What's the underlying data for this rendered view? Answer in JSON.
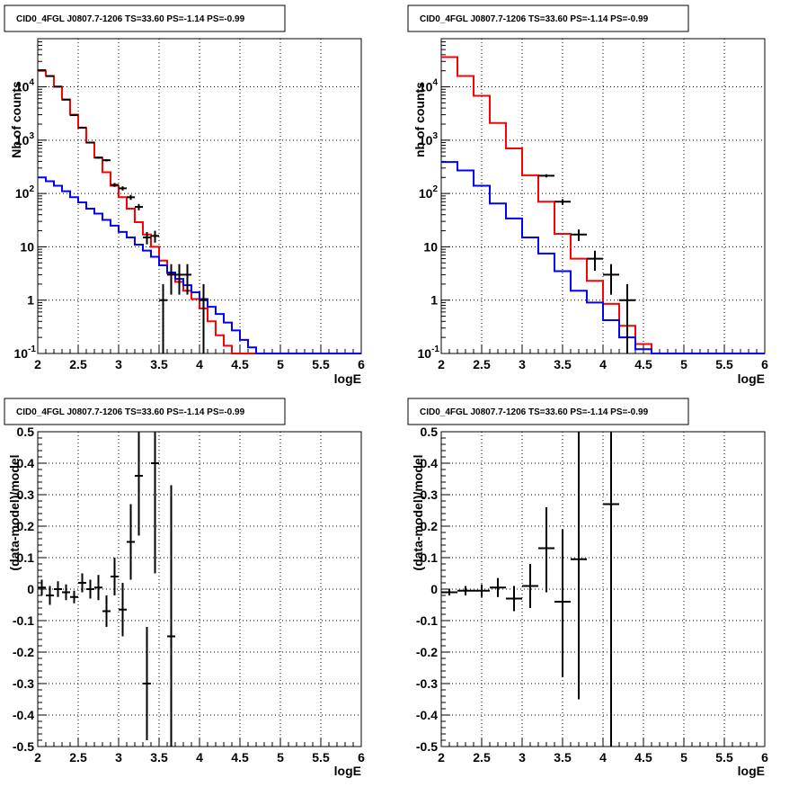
{
  "colors": {
    "model_total": "#ff0000",
    "model_background": "#0000ff",
    "data": "#000000",
    "grid": "#000000"
  },
  "chart_data": [
    {
      "id": "p1",
      "type": "line",
      "title": "CID0_4FGL J0807.7-1206 TS=33.60 PS=-1.14 PS=-0.99",
      "xlabel": "logE",
      "ylabel": "Nb of counts",
      "xlim": [
        2,
        6
      ],
      "ylim": [
        0.1,
        80000
      ],
      "yscale": "log",
      "grid": true,
      "xticks": [
        "2",
        "2.5",
        "3",
        "3.5",
        "4",
        "4.5",
        "5",
        "5.5",
        "6"
      ],
      "yticks": [
        {
          "value": 0.1,
          "label": "10",
          "sup": "-1"
        },
        {
          "value": 1,
          "label": "1",
          "sup": ""
        },
        {
          "value": 10,
          "label": "10",
          "sup": ""
        },
        {
          "value": 100,
          "label": "10",
          "sup": "2"
        },
        {
          "value": 1000,
          "label": "10",
          "sup": "3"
        },
        {
          "value": 10000,
          "label": "10",
          "sup": "4"
        }
      ],
      "bin_edges": [
        2,
        2.1,
        2.2,
        2.3,
        2.4,
        2.5,
        2.6,
        2.7,
        2.8,
        2.9,
        3,
        3.1,
        3.2,
        3.3,
        3.4,
        3.5,
        3.6,
        3.7,
        3.8,
        3.9,
        4,
        4.1,
        4.2,
        4.3,
        4.4,
        4.5,
        4.6,
        4.7,
        4.8,
        4.9,
        5,
        5.1,
        5.2,
        5.3,
        5.4,
        5.5,
        5.6,
        5.7,
        5.8,
        5.9,
        6
      ],
      "series": [
        {
          "role": "model_total",
          "values": [
            20000,
            16000,
            10000,
            5800,
            3000,
            1700,
            900,
            470,
            250,
            140,
            85,
            52,
            29,
            17,
            10,
            5.5,
            3.2,
            2.2,
            1.5,
            1.05,
            0.7,
            0.4,
            0.22,
            0.14,
            0.1,
            0.1,
            0.1,
            0.1,
            0.1,
            0.1,
            0.1,
            0.1,
            0.1,
            0.1,
            0.1,
            0.1,
            0.1,
            0.1,
            0.1,
            0.1
          ]
        },
        {
          "role": "model_background",
          "values": [
            200,
            170,
            140,
            110,
            85,
            68,
            52,
            42,
            32,
            25,
            19,
            15,
            11,
            8.5,
            6.5,
            4.5,
            3.3,
            2.5,
            1.9,
            1.4,
            1.05,
            0.75,
            0.55,
            0.38,
            0.27,
            0.18,
            0.13,
            0.1,
            0.1,
            0.1,
            0.1,
            0.1,
            0.1,
            0.1,
            0.1,
            0.1,
            0.1,
            0.1,
            0.1,
            0.1
          ]
        },
        {
          "role": "data",
          "points": [
            {
              "x": 2.05,
              "y": 20500,
              "xerr": 0.05
            },
            {
              "x": 2.15,
              "y": 15900,
              "xerr": 0.05
            },
            {
              "x": 2.25,
              "y": 10100,
              "xerr": 0.05
            },
            {
              "x": 2.35,
              "y": 5750,
              "xerr": 0.05
            },
            {
              "x": 2.45,
              "y": 2950,
              "xerr": 0.05
            },
            {
              "x": 2.55,
              "y": 1720,
              "xerr": 0.05
            },
            {
              "x": 2.65,
              "y": 900,
              "xerr": 0.05
            },
            {
              "x": 2.75,
              "y": 470,
              "xerr": 0.05
            },
            {
              "x": 2.85,
              "y": 420,
              "xerr": 0.05
            },
            {
              "x": 2.95,
              "y": 145,
              "xerr": 0.05
            },
            {
              "x": 3.05,
              "y": 125,
              "xerr": 0.05
            },
            {
              "x": 3.15,
              "y": 85,
              "xerr": 0.05
            },
            {
              "x": 3.25,
              "y": 56,
              "xerr": 0.05
            },
            {
              "x": 3.35,
              "y": 15,
              "xerr": 0.05
            },
            {
              "x": 3.45,
              "y": 16,
              "xerr": 0.05
            },
            {
              "x": 3.55,
              "y": 1,
              "xerr": 0.05
            },
            {
              "x": 3.65,
              "y": 3,
              "xerr": 0.05
            },
            {
              "x": 3.75,
              "y": 3,
              "xerr": 0.05
            },
            {
              "x": 3.85,
              "y": 3,
              "xerr": 0.05
            },
            {
              "x": 4.05,
              "y": 1,
              "xerr": 0.05
            }
          ]
        }
      ]
    },
    {
      "id": "p2",
      "type": "line",
      "title": "CID0_4FGL J0807.7-1206 TS=33.60 PS=-1.14 PS=-0.99",
      "xlabel": "logE",
      "ylabel": "nb of counts",
      "xlim": [
        2,
        6
      ],
      "ylim": [
        0.1,
        80000
      ],
      "yscale": "log",
      "grid": true,
      "xticks": [
        "2",
        "2.5",
        "3",
        "3.5",
        "4",
        "4.5",
        "5",
        "5.5",
        "6"
      ],
      "yticks": [
        {
          "value": 0.1,
          "label": "10",
          "sup": "-1"
        },
        {
          "value": 1,
          "label": "1",
          "sup": ""
        },
        {
          "value": 10,
          "label": "10",
          "sup": ""
        },
        {
          "value": 100,
          "label": "10",
          "sup": "2"
        },
        {
          "value": 1000,
          "label": "10",
          "sup": "3"
        },
        {
          "value": 10000,
          "label": "10",
          "sup": "4"
        }
      ],
      "bin_edges": [
        2,
        2.2,
        2.4,
        2.6,
        2.8,
        3,
        3.2,
        3.4,
        3.6,
        3.8,
        4,
        4.2,
        4.4,
        4.6,
        4.8,
        5,
        5.2,
        5.4,
        5.6,
        5.8,
        6
      ],
      "series": [
        {
          "role": "model_total",
          "values": [
            36000,
            16000,
            6800,
            2100,
            700,
            220,
            70,
            17.5,
            6,
            2.3,
            0.85,
            0.33,
            0.15,
            0.1,
            0.1,
            0.1,
            0.1,
            0.1,
            0.1,
            0.1
          ]
        },
        {
          "role": "model_background",
          "values": [
            390,
            270,
            140,
            65,
            34,
            15,
            7.5,
            3.5,
            1.5,
            0.9,
            0.42,
            0.2,
            0.12,
            0.1,
            0.1,
            0.1,
            0.1,
            0.1,
            0.1,
            0.1
          ]
        },
        {
          "role": "data",
          "points": [
            {
              "x": 3.3,
              "y": 215,
              "xerr": 0.1
            },
            {
              "x": 3.5,
              "y": 70,
              "xerr": 0.1
            },
            {
              "x": 3.7,
              "y": 17,
              "xerr": 0.1
            },
            {
              "x": 3.9,
              "y": 6,
              "xerr": 0.1
            },
            {
              "x": 4.1,
              "y": 3,
              "xerr": 0.1
            },
            {
              "x": 4.3,
              "y": 1,
              "xerr": 0.1
            }
          ]
        }
      ]
    },
    {
      "id": "p3",
      "type": "scatter",
      "title": "CID0_4FGL J0807.7-1206 TS=33.60 PS=-1.14 PS=-0.99",
      "xlabel": "logE",
      "ylabel": "(data-model)/model",
      "xlim": [
        2,
        6
      ],
      "ylim": [
        -0.5,
        0.5
      ],
      "yscale": "linear",
      "grid": true,
      "xticks": [
        "2",
        "2.5",
        "3",
        "3.5",
        "4",
        "4.5",
        "5",
        "5.5",
        "6"
      ],
      "yticks": [
        {
          "value": -0.5,
          "label": "-0.5",
          "sup": ""
        },
        {
          "value": -0.4,
          "label": "-0.4",
          "sup": ""
        },
        {
          "value": -0.3,
          "label": "-0.3",
          "sup": ""
        },
        {
          "value": -0.2,
          "label": "-0.2",
          "sup": ""
        },
        {
          "value": -0.1,
          "label": "-0.1",
          "sup": ""
        },
        {
          "value": 0,
          "label": "0",
          "sup": ""
        },
        {
          "value": 0.1,
          "label": "0.1",
          "sup": ""
        },
        {
          "value": 0.2,
          "label": "0.2",
          "sup": ""
        },
        {
          "value": 0.3,
          "label": "0.3",
          "sup": ""
        },
        {
          "value": 0.4,
          "label": "0.4",
          "sup": ""
        },
        {
          "value": 0.5,
          "label": "0.5",
          "sup": ""
        }
      ],
      "series": [
        {
          "role": "data",
          "points": [
            {
              "x": 2.05,
              "y": 0.005,
              "xerr": 0.05,
              "ylo": -0.02,
              "yhi": 0.03
            },
            {
              "x": 2.15,
              "y": -0.02,
              "xerr": 0.05,
              "ylo": -0.05,
              "yhi": 0.01
            },
            {
              "x": 2.25,
              "y": 0.0,
              "xerr": 0.05,
              "ylo": -0.025,
              "yhi": 0.025
            },
            {
              "x": 2.35,
              "y": -0.01,
              "xerr": 0.05,
              "ylo": -0.035,
              "yhi": 0.015
            },
            {
              "x": 2.45,
              "y": -0.025,
              "xerr": 0.05,
              "ylo": -0.045,
              "yhi": -0.005
            },
            {
              "x": 2.55,
              "y": 0.02,
              "xerr": 0.05,
              "ylo": -0.01,
              "yhi": 0.05
            },
            {
              "x": 2.65,
              "y": 0.0,
              "xerr": 0.05,
              "ylo": -0.03,
              "yhi": 0.03
            },
            {
              "x": 2.75,
              "y": 0.005,
              "xerr": 0.05,
              "ylo": -0.035,
              "yhi": 0.045
            },
            {
              "x": 2.85,
              "y": -0.07,
              "xerr": 0.05,
              "ylo": -0.12,
              "yhi": -0.02
            },
            {
              "x": 2.95,
              "y": 0.04,
              "xerr": 0.05,
              "ylo": -0.02,
              "yhi": 0.1
            },
            {
              "x": 3.05,
              "y": -0.065,
              "xerr": 0.05,
              "ylo": -0.15,
              "yhi": 0.02
            },
            {
              "x": 3.15,
              "y": 0.15,
              "xerr": 0.05,
              "ylo": 0.03,
              "yhi": 0.27
            },
            {
              "x": 3.25,
              "y": 0.36,
              "xerr": 0.05,
              "ylo": 0.17,
              "yhi": 0.55
            },
            {
              "x": 3.35,
              "y": -0.3,
              "xerr": 0.05,
              "ylo": -0.48,
              "yhi": -0.12
            },
            {
              "x": 3.45,
              "y": 0.4,
              "xerr": 0.05,
              "ylo": 0.05,
              "yhi": 0.75
            },
            {
              "x": 3.65,
              "y": -0.15,
              "xerr": 0.05,
              "ylo": -0.65,
              "yhi": 0.33
            }
          ]
        }
      ]
    },
    {
      "id": "p4",
      "type": "scatter",
      "title": "CID0_4FGL J0807.7-1206 TS=33.60 PS=-1.14 PS=-0.99",
      "xlabel": "logE",
      "ylabel": "(data-model)/model",
      "xlim": [
        2,
        6
      ],
      "ylim": [
        -0.5,
        0.5
      ],
      "yscale": "linear",
      "grid": true,
      "xticks": [
        "2",
        "2.5",
        "3",
        "3.5",
        "4",
        "4.5",
        "5",
        "5.5",
        "6"
      ],
      "yticks": [
        {
          "value": -0.5,
          "label": "-0.5",
          "sup": ""
        },
        {
          "value": -0.4,
          "label": "-0.4",
          "sup": ""
        },
        {
          "value": -0.3,
          "label": "-0.3",
          "sup": ""
        },
        {
          "value": -0.2,
          "label": "-0.2",
          "sup": ""
        },
        {
          "value": -0.1,
          "label": "-0.1",
          "sup": ""
        },
        {
          "value": 0,
          "label": "0",
          "sup": ""
        },
        {
          "value": 0.1,
          "label": "0.1",
          "sup": ""
        },
        {
          "value": 0.2,
          "label": "0.2",
          "sup": ""
        },
        {
          "value": 0.3,
          "label": "0.3",
          "sup": ""
        },
        {
          "value": 0.4,
          "label": "0.4",
          "sup": ""
        },
        {
          "value": 0.5,
          "label": "0.5",
          "sup": ""
        }
      ],
      "series": [
        {
          "role": "data",
          "points": [
            {
              "x": 2.1,
              "y": -0.01,
              "xerr": 0.1,
              "ylo": -0.02,
              "yhi": 0.0
            },
            {
              "x": 2.3,
              "y": -0.005,
              "xerr": 0.1,
              "ylo": -0.02,
              "yhi": 0.01
            },
            {
              "x": 2.5,
              "y": -0.005,
              "xerr": 0.1,
              "ylo": -0.025,
              "yhi": 0.015
            },
            {
              "x": 2.7,
              "y": 0.005,
              "xerr": 0.1,
              "ylo": -0.025,
              "yhi": 0.035
            },
            {
              "x": 2.9,
              "y": -0.03,
              "xerr": 0.1,
              "ylo": -0.07,
              "yhi": 0.01
            },
            {
              "x": 3.1,
              "y": 0.01,
              "xerr": 0.1,
              "ylo": -0.06,
              "yhi": 0.08
            },
            {
              "x": 3.3,
              "y": 0.13,
              "xerr": 0.1,
              "ylo": -0.01,
              "yhi": 0.26
            },
            {
              "x": 3.5,
              "y": -0.04,
              "xerr": 0.1,
              "ylo": -0.28,
              "yhi": 0.19
            },
            {
              "x": 3.7,
              "y": 0.095,
              "xerr": 0.1,
              "ylo": -0.35,
              "yhi": 0.55
            },
            {
              "x": 4.1,
              "y": 0.27,
              "xerr": 0.1,
              "ylo": -0.6,
              "yhi": 0.6
            }
          ]
        }
      ]
    }
  ]
}
